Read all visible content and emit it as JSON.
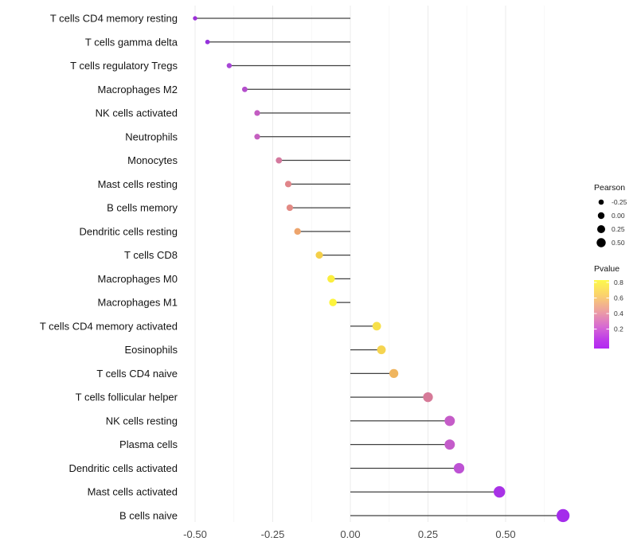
{
  "chart_data": {
    "type": "scatter",
    "variant": "lollipop",
    "orientation": "horizontal",
    "title": "",
    "xlabel": "",
    "ylabel": "",
    "xlim": [
      -0.56,
      0.75
    ],
    "x_ticks": [
      -0.5,
      -0.25,
      0.0,
      0.25,
      0.5
    ],
    "x_tick_labels": [
      "-0.50",
      "-0.25",
      "0.00",
      "0.25",
      "0.50"
    ],
    "x_minor_ticks": [
      -0.375,
      -0.125,
      0.125,
      0.375,
      0.625
    ],
    "grid": "vertical-only",
    "baseline": 0,
    "points": [
      {
        "label": "T cells CD4 memory resting",
        "pearson": -0.5,
        "pvalue": 0.1,
        "color": "#9c30d8"
      },
      {
        "label": "T cells gamma delta",
        "pearson": -0.46,
        "pvalue": 0.1,
        "color": "#9532dc"
      },
      {
        "label": "T cells regulatory  Tregs",
        "pearson": -0.39,
        "pvalue": 0.15,
        "color": "#a746d6"
      },
      {
        "label": "Macrophages M2",
        "pearson": -0.34,
        "pvalue": 0.2,
        "color": "#b44ecc"
      },
      {
        "label": "NK cells activated",
        "pearson": -0.3,
        "pvalue": 0.25,
        "color": "#c35cc2"
      },
      {
        "label": "Neutrophils",
        "pearson": -0.3,
        "pvalue": 0.25,
        "color": "#c55fc0"
      },
      {
        "label": "Monocytes",
        "pearson": -0.23,
        "pvalue": 0.35,
        "color": "#d4799e"
      },
      {
        "label": "Mast cells resting",
        "pearson": -0.2,
        "pvalue": 0.4,
        "color": "#e0858a"
      },
      {
        "label": "B cells memory",
        "pearson": -0.195,
        "pvalue": 0.42,
        "color": "#e28a84"
      },
      {
        "label": "Dendritic cells resting",
        "pearson": -0.17,
        "pvalue": 0.5,
        "color": "#eda46c"
      },
      {
        "label": "T cells CD8",
        "pearson": -0.1,
        "pvalue": 0.65,
        "color": "#f4cf49"
      },
      {
        "label": "Macrophages M0",
        "pearson": -0.062,
        "pvalue": 0.8,
        "color": "#fbee3f"
      },
      {
        "label": "Macrophages M1",
        "pearson": -0.056,
        "pvalue": 0.82,
        "color": "#fdf43c"
      },
      {
        "label": "T cells CD4 memory activated",
        "pearson": 0.085,
        "pvalue": 0.75,
        "color": "#f7e04a"
      },
      {
        "label": "Eosinophils",
        "pearson": 0.1,
        "pvalue": 0.65,
        "color": "#f5d450"
      },
      {
        "label": "T cells CD4 naive",
        "pearson": 0.14,
        "pvalue": 0.55,
        "color": "#efb55f"
      },
      {
        "label": "T cells follicular helper",
        "pearson": 0.25,
        "pvalue": 0.35,
        "color": "#d67a98"
      },
      {
        "label": "NK cells resting",
        "pearson": 0.32,
        "pvalue": 0.25,
        "color": "#c55cc8"
      },
      {
        "label": "Plasma cells",
        "pearson": 0.32,
        "pvalue": 0.25,
        "color": "#c45cca"
      },
      {
        "label": "Dendritic cells activated",
        "pearson": 0.35,
        "pvalue": 0.2,
        "color": "#bd52d4"
      },
      {
        "label": "Mast cells activated",
        "pearson": 0.48,
        "pvalue": 0.1,
        "color": "#a832e6"
      },
      {
        "label": "B cells naive",
        "pearson": 0.685,
        "pvalue": 0.05,
        "color": "#a42ceb"
      }
    ],
    "legend": {
      "position": "right",
      "size_legend": {
        "title": "Pearson",
        "dot_color": "#000000",
        "entries": [
          {
            "label": "-0.25",
            "value": -0.25
          },
          {
            "label": "0.00",
            "value": 0.0
          },
          {
            "label": "0.25",
            "value": 0.25
          },
          {
            "label": "0.50",
            "value": 0.5
          }
        ]
      },
      "color_legend": {
        "title": "Pvalue",
        "tick_labels": [
          "0.8",
          "0.6",
          "0.4",
          "0.2"
        ],
        "tick_values": [
          0.8,
          0.6,
          0.4,
          0.2
        ],
        "bar_value_top": 0.83,
        "bar_value_bottom": -0.05,
        "gradient_stops": [
          {
            "offset": 0.0,
            "color": "#fdf94b"
          },
          {
            "offset": 0.22,
            "color": "#fbd26d"
          },
          {
            "offset": 0.45,
            "color": "#eda0a0"
          },
          {
            "offset": 0.68,
            "color": "#d76ad2"
          },
          {
            "offset": 0.88,
            "color": "#bd39ea"
          },
          {
            "offset": 1.0,
            "color": "#b228f2"
          }
        ]
      }
    }
  },
  "colors": {
    "background": "#ffffff",
    "stem": "#404040",
    "grid_major": "#ebebeb",
    "grid_minor": "#f5f5f5",
    "axis_text": "#4a4a4a",
    "label_text": "#141414",
    "legend_text": "#333333"
  }
}
